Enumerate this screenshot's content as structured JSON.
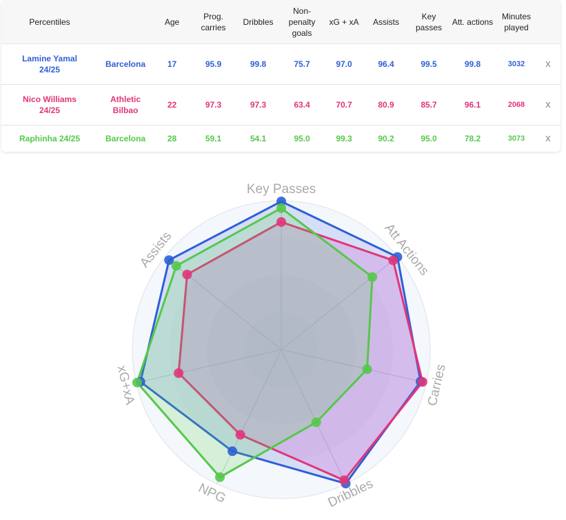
{
  "table": {
    "headers": [
      "Percentiles",
      "",
      "Age",
      "Prog. carries",
      "Dribbles",
      "Non-penalty goals",
      "xG + xA",
      "Assists",
      "Key passes",
      "Att. actions",
      "Minutes played"
    ],
    "remove_label": "x",
    "rows": [
      {
        "player": "Lamine Yamal 24/25",
        "club": "Barcelona",
        "age": "17",
        "prog_carries": "95.9",
        "dribbles": "99.8",
        "np_goals": "75.7",
        "xg_xa": "97.0",
        "assists": "96.4",
        "key_passes": "99.5",
        "att_actions": "99.8",
        "minutes": "3032",
        "color": "#2f5fd6"
      },
      {
        "player": "Nico Williams 24/25",
        "club": "Athletic Bilbao",
        "age": "22",
        "prog_carries": "97.3",
        "dribbles": "97.3",
        "np_goals": "63.4",
        "xg_xa": "70.7",
        "assists": "80.9",
        "key_passes": "85.7",
        "att_actions": "96.1",
        "minutes": "2068",
        "color": "#e0357a"
      },
      {
        "player": "Raphinha 24/25",
        "club": "Barcelona",
        "age": "28",
        "prog_carries": "59.1",
        "dribbles": "54.1",
        "np_goals": "95.0",
        "xg_xa": "99.3",
        "assists": "90.2",
        "key_passes": "95.0",
        "att_actions": "78.2",
        "minutes": "3073",
        "color": "#55c84a"
      }
    ]
  },
  "chart_data": {
    "type": "radar",
    "axes": [
      "Key Passes",
      "Att Actions",
      "Carries",
      "Dribbles",
      "NPG",
      "xG+xA",
      "Assists"
    ],
    "range": [
      0,
      100
    ],
    "series": [
      {
        "name": "Lamine Yamal 24/25",
        "color": "#2f5fd6",
        "values": [
          99.5,
          99.8,
          95.9,
          99.8,
          75.7,
          97.0,
          96.4
        ]
      },
      {
        "name": "Nico Williams 24/25",
        "color": "#e0357a",
        "values": [
          85.7,
          96.1,
          97.3,
          97.3,
          63.4,
          70.7,
          80.9
        ]
      },
      {
        "name": "Raphinha 24/25",
        "color": "#55c84a",
        "values": [
          95.0,
          78.2,
          59.1,
          54.1,
          95.0,
          99.3,
          90.2
        ]
      }
    ]
  }
}
